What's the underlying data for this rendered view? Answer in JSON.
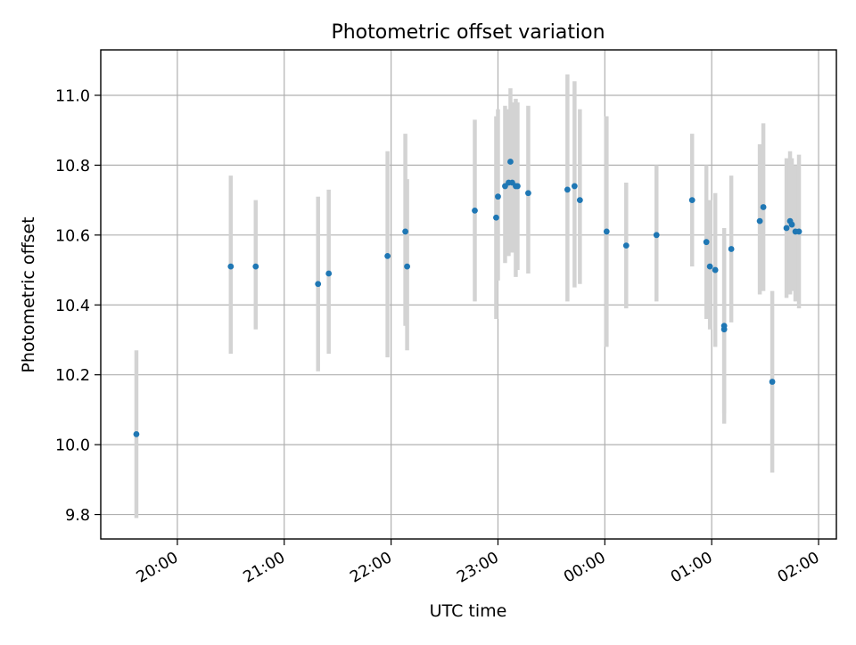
{
  "chart_data": {
    "type": "scatter",
    "title": "Photometric offset variation",
    "xlabel": "UTC time",
    "ylabel": "Photometric offset",
    "x_axis_kind": "time",
    "xlim": [
      "19:17",
      "02:10"
    ],
    "ylim": [
      9.73,
      11.13
    ],
    "grid": true,
    "x_ticks": [
      "20:00",
      "21:00",
      "22:00",
      "23:00",
      "00:00",
      "01:00",
      "02:00"
    ],
    "y_ticks": [
      "9.8",
      "10.0",
      "10.2",
      "10.4",
      "10.6",
      "10.8",
      "11.0"
    ],
    "colors": {
      "points": "#1f77b4",
      "errorbars": "#d3d3d3",
      "grid": "#b0b0b0",
      "axes": "#000000"
    },
    "points": [
      {
        "t": "19:37",
        "y": 10.03,
        "lo": 9.79,
        "hi": 10.27
      },
      {
        "t": "20:30",
        "y": 10.51,
        "lo": 10.26,
        "hi": 10.77
      },
      {
        "t": "20:44",
        "y": 10.51,
        "lo": 10.33,
        "hi": 10.7
      },
      {
        "t": "21:19",
        "y": 10.46,
        "lo": 10.21,
        "hi": 10.71
      },
      {
        "t": "21:25",
        "y": 10.49,
        "lo": 10.26,
        "hi": 10.73
      },
      {
        "t": "21:58",
        "y": 10.54,
        "lo": 10.25,
        "hi": 10.84
      },
      {
        "t": "22:08",
        "y": 10.61,
        "lo": 10.34,
        "hi": 10.89
      },
      {
        "t": "22:09",
        "y": 10.51,
        "lo": 10.27,
        "hi": 10.76
      },
      {
        "t": "22:47",
        "y": 10.67,
        "lo": 10.41,
        "hi": 10.93
      },
      {
        "t": "22:59",
        "y": 10.65,
        "lo": 10.36,
        "hi": 10.94
      },
      {
        "t": "23:00",
        "y": 10.71,
        "lo": 10.47,
        "hi": 10.96
      },
      {
        "t": "23:04",
        "y": 10.74,
        "lo": 10.52,
        "hi": 10.97
      },
      {
        "t": "23:06",
        "y": 10.75,
        "lo": 10.54,
        "hi": 10.96
      },
      {
        "t": "23:07",
        "y": 10.81,
        "lo": 10.56,
        "hi": 11.02
      },
      {
        "t": "23:08",
        "y": 10.75,
        "lo": 10.55,
        "hi": 10.98
      },
      {
        "t": "23:10",
        "y": 10.74,
        "lo": 10.48,
        "hi": 10.99
      },
      {
        "t": "23:11",
        "y": 10.74,
        "lo": 10.5,
        "hi": 10.98
      },
      {
        "t": "23:17",
        "y": 10.72,
        "lo": 10.49,
        "hi": 10.97
      },
      {
        "t": "23:39",
        "y": 10.73,
        "lo": 10.41,
        "hi": 11.06
      },
      {
        "t": "23:43",
        "y": 10.74,
        "lo": 10.45,
        "hi": 11.04
      },
      {
        "t": "23:46",
        "y": 10.7,
        "lo": 10.46,
        "hi": 10.96
      },
      {
        "t": "00:01",
        "y": 10.61,
        "lo": 10.28,
        "hi": 10.94
      },
      {
        "t": "00:12",
        "y": 10.57,
        "lo": 10.39,
        "hi": 10.75
      },
      {
        "t": "00:29",
        "y": 10.6,
        "lo": 10.41,
        "hi": 10.8
      },
      {
        "t": "00:49",
        "y": 10.7,
        "lo": 10.51,
        "hi": 10.89
      },
      {
        "t": "00:57",
        "y": 10.58,
        "lo": 10.36,
        "hi": 10.8
      },
      {
        "t": "00:59",
        "y": 10.51,
        "lo": 10.33,
        "hi": 10.7
      },
      {
        "t": "01:02",
        "y": 10.5,
        "lo": 10.28,
        "hi": 10.72
      },
      {
        "t": "01:07",
        "y": 10.33,
        "lo": 10.06,
        "hi": 10.62
      },
      {
        "t": "01:07",
        "y": 10.34,
        "lo": 10.09,
        "hi": 10.59
      },
      {
        "t": "01:11",
        "y": 10.56,
        "lo": 10.35,
        "hi": 10.77
      },
      {
        "t": "01:27",
        "y": 10.64,
        "lo": 10.43,
        "hi": 10.86
      },
      {
        "t": "01:29",
        "y": 10.68,
        "lo": 10.44,
        "hi": 10.92
      },
      {
        "t": "01:34",
        "y": 10.18,
        "lo": 9.92,
        "hi": 10.44
      },
      {
        "t": "01:42",
        "y": 10.62,
        "lo": 10.42,
        "hi": 10.82
      },
      {
        "t": "01:44",
        "y": 10.64,
        "lo": 10.43,
        "hi": 10.84
      },
      {
        "t": "01:45",
        "y": 10.63,
        "lo": 10.44,
        "hi": 10.82
      },
      {
        "t": "01:47",
        "y": 10.61,
        "lo": 10.41,
        "hi": 10.8
      },
      {
        "t": "01:49",
        "y": 10.61,
        "lo": 10.39,
        "hi": 10.83
      }
    ]
  }
}
